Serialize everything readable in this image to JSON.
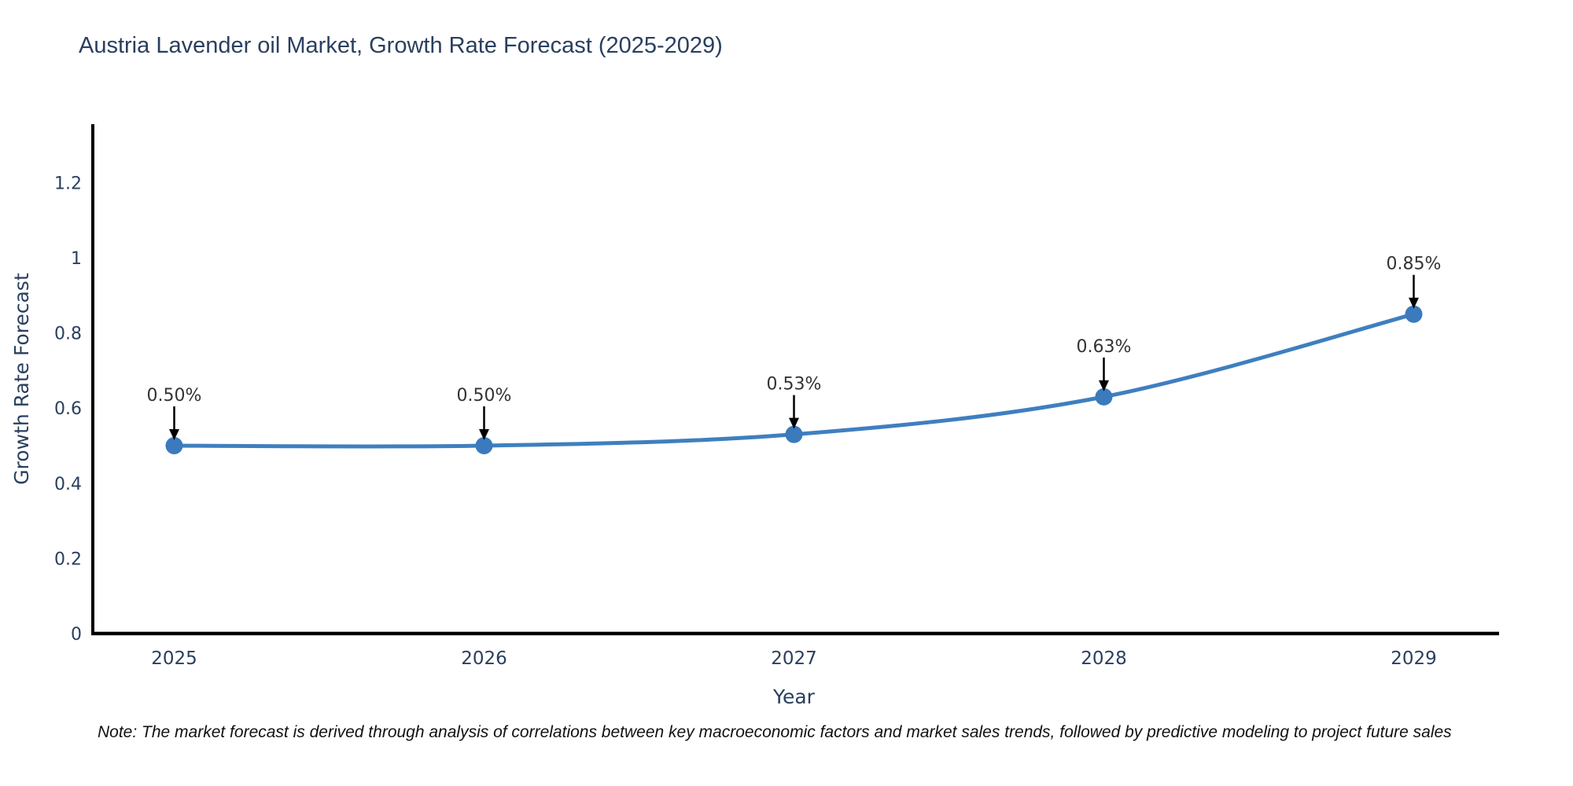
{
  "title": "Austria Lavender oil Market, Growth Rate Forecast (2025-2029)",
  "note": "Note: The market forecast is derived through analysis of correlations between key macroeconomic factors and market sales trends, followed by predictive modeling to project future sales",
  "chart_data": {
    "type": "line",
    "title": "Austria Lavender oil Market, Growth Rate Forecast (2025-2029)",
    "categories": [
      "2025",
      "2026",
      "2027",
      "2028",
      "2029"
    ],
    "values": [
      0.5,
      0.5,
      0.53,
      0.63,
      0.85
    ],
    "point_labels": [
      "0.50%",
      "0.50%",
      "0.53%",
      "0.63%",
      "0.85%"
    ],
    "xlabel": "Year",
    "ylabel": "Growth Rate Forecast",
    "ylim": [
      0,
      1.35
    ],
    "yticks": [
      0,
      0.2,
      0.4,
      0.6,
      0.8,
      1,
      1.2
    ],
    "ytick_labels": [
      "0",
      "0.2",
      "0.4",
      "0.6",
      "0.8",
      "1",
      "1.2"
    ],
    "line_shape": "spline",
    "grid": false,
    "legend_position": "none",
    "annotations_arrow": "down-arrow-to-point",
    "colors": {
      "line": "#3f7fbf",
      "marker": "#3a7abd",
      "axis_line": "#000000",
      "axis_label": "#2a3f5f",
      "annotation_text": "#333333",
      "title_text": "#2a3f5f",
      "note_text": "#111111"
    }
  }
}
